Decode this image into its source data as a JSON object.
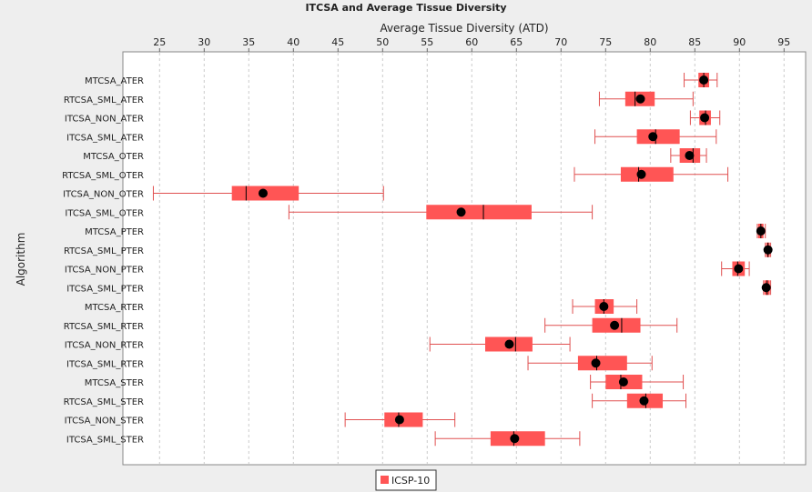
{
  "chart_data": {
    "type": "boxplot",
    "title": "ITCSA and Average Tissue Diversity",
    "xlabel": "Average Tissue Diversity (ATD)",
    "ylabel": "Algorithm",
    "xlim": [
      21,
      96
    ],
    "xticks": [
      25,
      30,
      35,
      40,
      45,
      50,
      55,
      60,
      65,
      70,
      75,
      80,
      85,
      90,
      95
    ],
    "grid": true,
    "legend_position": "bottom",
    "colors": {
      "box": "#ff5555",
      "whisker": "#e05050",
      "mean": "#000000",
      "grid": "#cccccc"
    },
    "series": [
      {
        "name": "ICSP-10",
        "boxes": [
          {
            "category": "MTCSA_ATER",
            "whisker_low": 83.8,
            "q1": 85.4,
            "median": 86.0,
            "q3": 86.6,
            "whisker_high": 87.5,
            "mean": 86.0
          },
          {
            "category": "RTCSA_SML_ATER",
            "whisker_low": 74.3,
            "q1": 77.2,
            "median": 78.3,
            "q3": 80.5,
            "whisker_high": 84.8,
            "mean": 78.9
          },
          {
            "category": "ITCSA_NON_ATER",
            "whisker_low": 84.5,
            "q1": 85.5,
            "median": 86.2,
            "q3": 86.8,
            "whisker_high": 87.8,
            "mean": 86.1
          },
          {
            "category": "ITCSA_SML_ATER",
            "whisker_low": 73.8,
            "q1": 78.5,
            "median": 80.6,
            "q3": 83.3,
            "whisker_high": 87.4,
            "mean": 80.3
          },
          {
            "category": "MTCSA_OTER",
            "whisker_low": 82.3,
            "q1": 83.3,
            "median": 84.8,
            "q3": 85.6,
            "whisker_high": 86.3,
            "mean": 84.4
          },
          {
            "category": "RTCSA_SML_OTER",
            "whisker_low": 71.5,
            "q1": 76.7,
            "median": 78.7,
            "q3": 82.6,
            "whisker_high": 88.7,
            "mean": 79.0
          },
          {
            "category": "ITCSA_NON_OTER",
            "whisker_low": 24.3,
            "q1": 33.1,
            "median": 34.7,
            "q3": 40.6,
            "whisker_high": 50.1,
            "mean": 36.6
          },
          {
            "category": "ITCSA_SML_OTER",
            "whisker_low": 39.5,
            "q1": 54.9,
            "median": 61.3,
            "q3": 66.7,
            "whisker_high": 73.5,
            "mean": 58.8
          },
          {
            "category": "MTCSA_PTER",
            "whisker_low": 92.0,
            "q1": 92.1,
            "median": 92.4,
            "q3": 92.7,
            "whisker_high": 92.9,
            "mean": 92.4
          },
          {
            "category": "RTCSA_SML_PTER",
            "whisker_low": 92.9,
            "q1": 93.0,
            "median": 93.2,
            "q3": 93.4,
            "whisker_high": 93.5,
            "mean": 93.2
          },
          {
            "category": "ITCSA_NON_PTER",
            "whisker_low": 88.0,
            "q1": 89.2,
            "median": 89.8,
            "q3": 90.6,
            "whisker_high": 91.1,
            "mean": 89.9
          },
          {
            "category": "ITCSA_SML_PTER",
            "whisker_low": 92.7,
            "q1": 92.8,
            "median": 93.1,
            "q3": 93.4,
            "whisker_high": 93.5,
            "mean": 93.0
          },
          {
            "category": "MTCSA_RTER",
            "whisker_low": 71.3,
            "q1": 73.8,
            "median": 74.8,
            "q3": 75.9,
            "whisker_high": 78.5,
            "mean": 74.8
          },
          {
            "category": "RTCSA_SML_RTER",
            "whisker_low": 68.2,
            "q1": 73.5,
            "median": 76.8,
            "q3": 78.9,
            "whisker_high": 83.0,
            "mean": 76.0
          },
          {
            "category": "ITCSA_NON_RTER",
            "whisker_low": 55.3,
            "q1": 61.5,
            "median": 64.9,
            "q3": 66.8,
            "whisker_high": 71.0,
            "mean": 64.2
          },
          {
            "category": "ITCSA_SML_RTER",
            "whisker_low": 66.3,
            "q1": 71.9,
            "median": 74.0,
            "q3": 77.4,
            "whisker_high": 80.2,
            "mean": 73.9
          },
          {
            "category": "MTCSA_STER",
            "whisker_low": 73.3,
            "q1": 75.0,
            "median": 76.7,
            "q3": 79.1,
            "whisker_high": 83.7,
            "mean": 77.0
          },
          {
            "category": "RTCSA_SML_STER",
            "whisker_low": 73.5,
            "q1": 77.4,
            "median": 79.5,
            "q3": 81.4,
            "whisker_high": 84.0,
            "mean": 79.3
          },
          {
            "category": "ITCSA_NON_STER",
            "whisker_low": 45.8,
            "q1": 50.2,
            "median": 51.8,
            "q3": 54.5,
            "whisker_high": 58.1,
            "mean": 51.9
          },
          {
            "category": "ITCSA_SML_STER",
            "whisker_low": 55.9,
            "q1": 62.1,
            "median": 64.7,
            "q3": 68.2,
            "whisker_high": 72.1,
            "mean": 64.8
          }
        ]
      }
    ]
  }
}
